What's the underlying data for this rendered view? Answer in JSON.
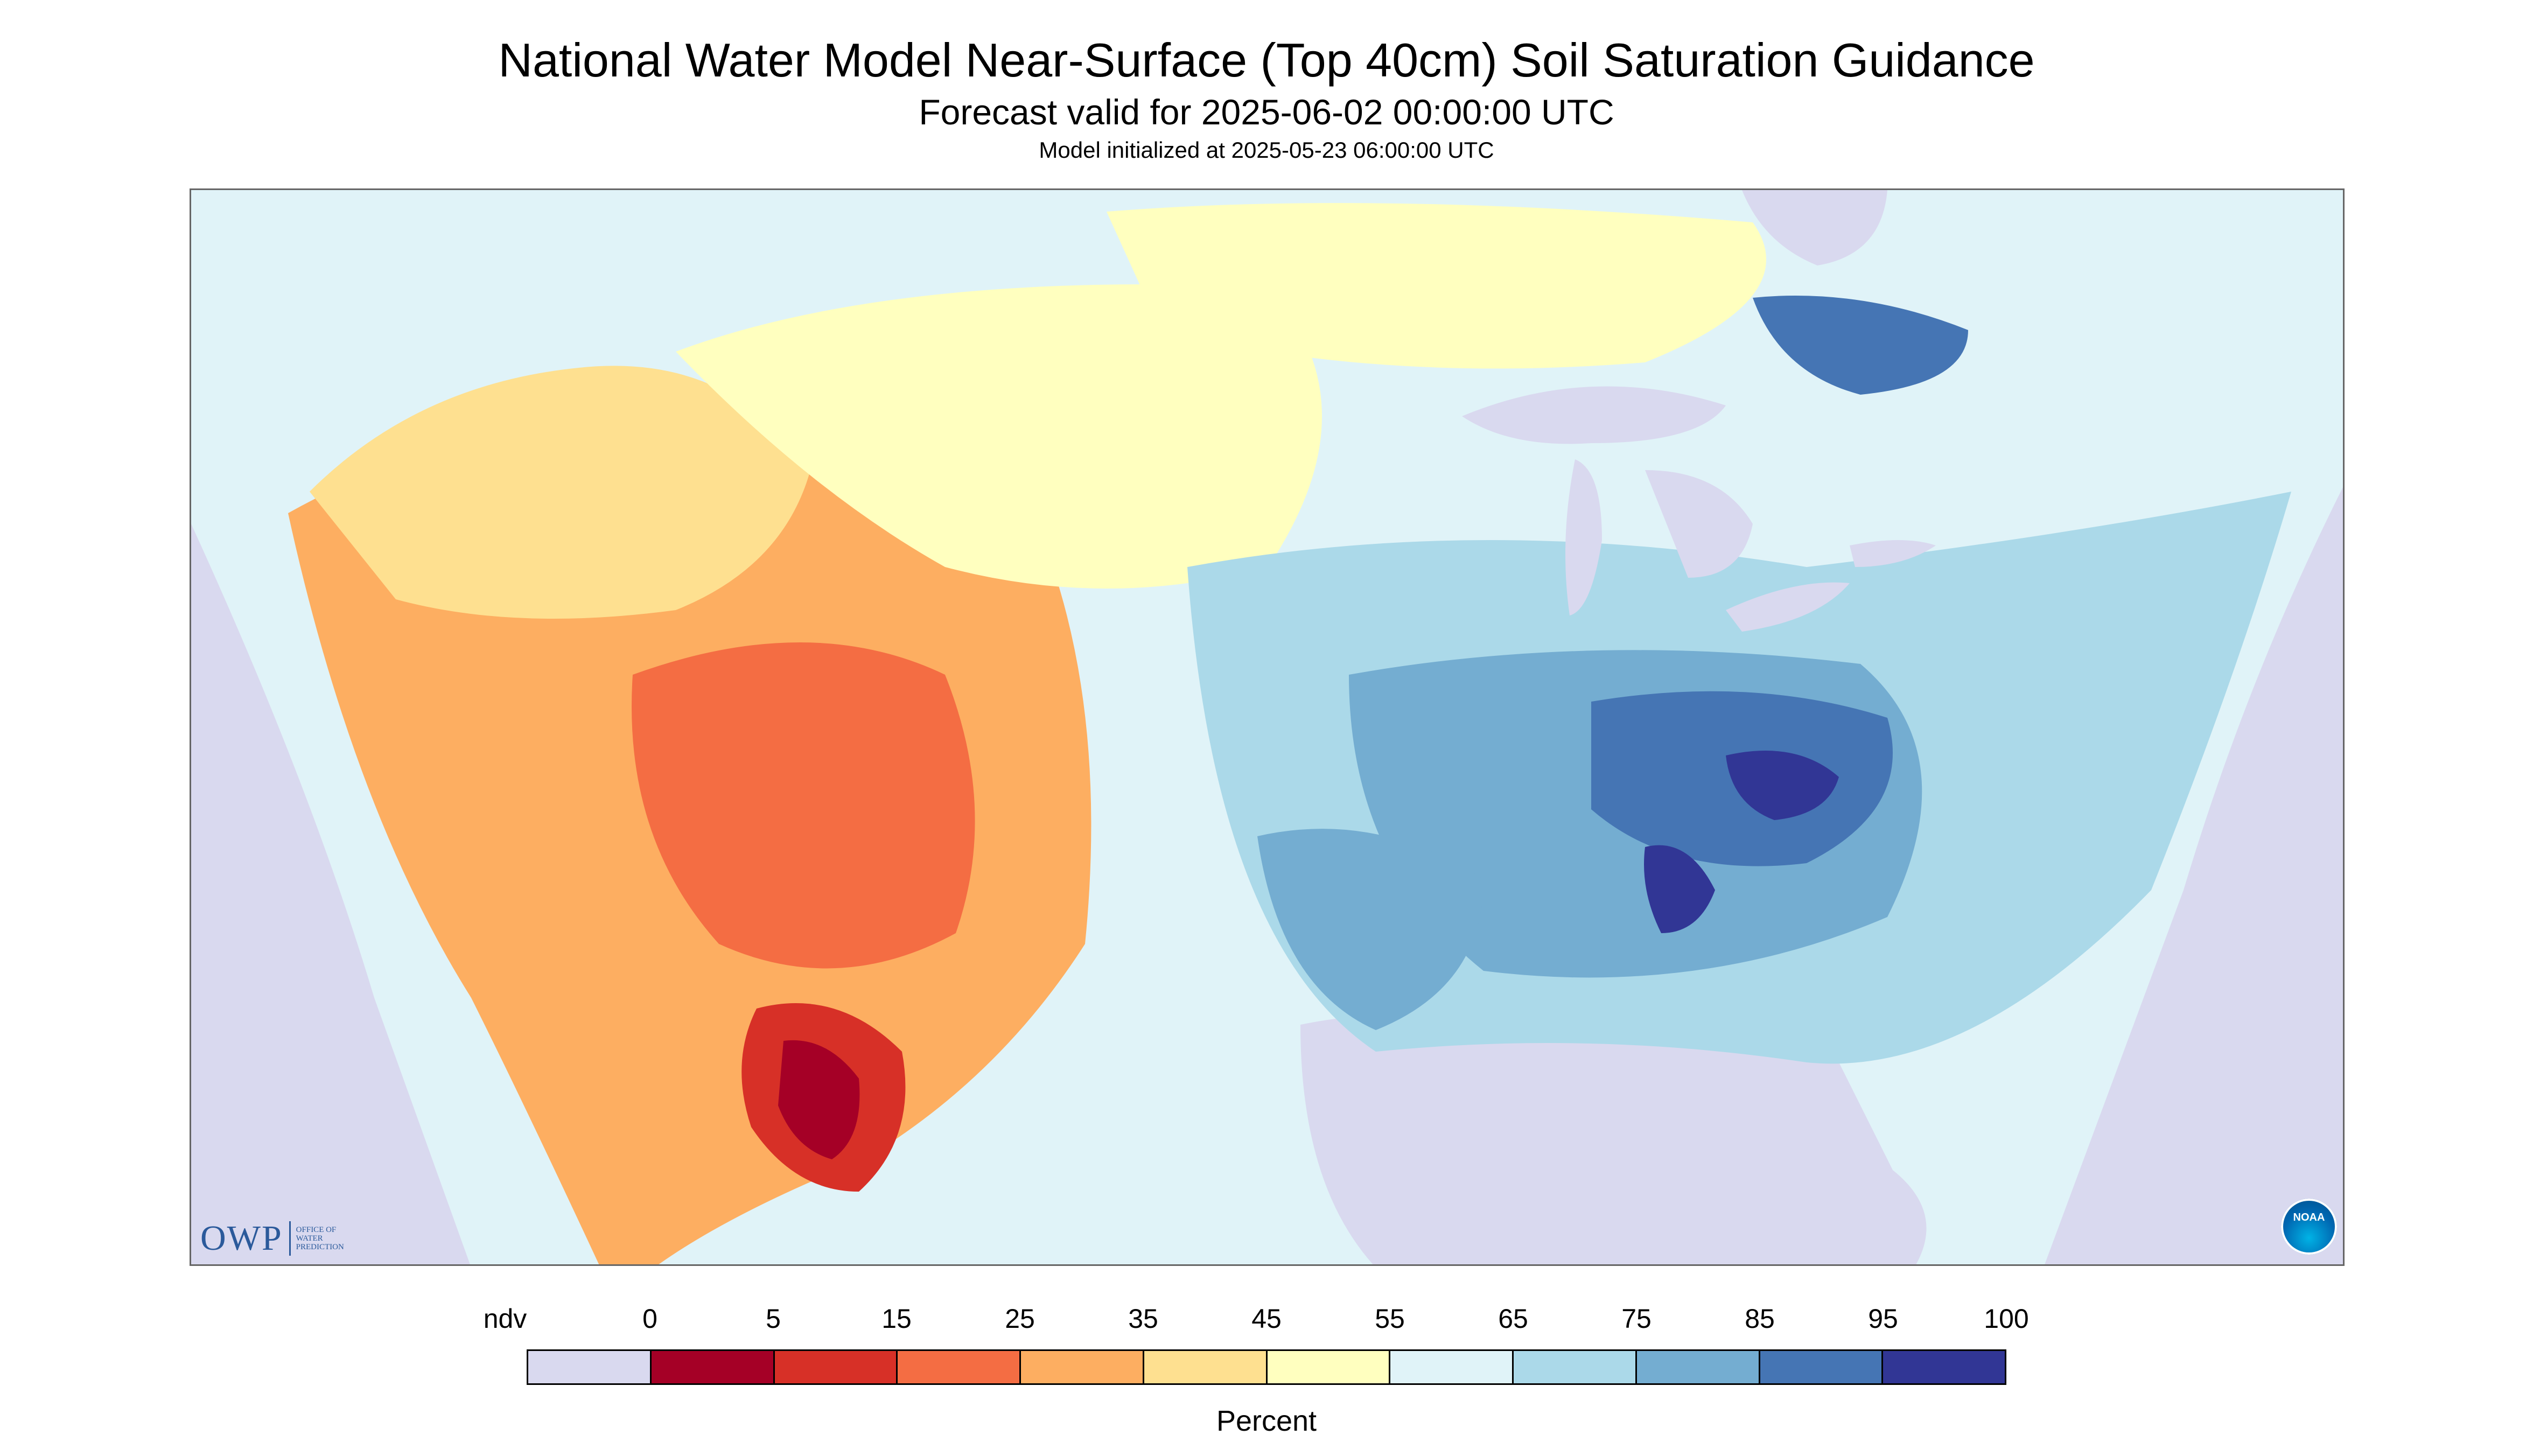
{
  "title": "National Water Model Near-Surface (Top 40cm) Soil Saturation Guidance",
  "subtitle": "Forecast valid for 2025-06-02 00:00:00 UTC",
  "init_line": "Model initialized at 2025-05-23 06:00:00 UTC",
  "logos": {
    "owp_mark": "OWP",
    "owp_text": [
      "OFFICE OF",
      "WATER",
      "PREDICTION"
    ],
    "noaa_text": "NOAA"
  },
  "legend": {
    "units": "Percent",
    "ticks": [
      "ndv",
      "0",
      "5",
      "15",
      "25",
      "35",
      "45",
      "55",
      "65",
      "75",
      "85",
      "95",
      "100"
    ],
    "colors": [
      "#d9d9ef",
      "#a50026",
      "#d73027",
      "#f46d43",
      "#fdae61",
      "#fee090",
      "#ffffbf",
      "#e0f3f8",
      "#abd9e9",
      "#74add1",
      "#4575b4",
      "#313695"
    ]
  },
  "map_colors": {
    "ndv": "#d9d9ef",
    "dry_extreme": "#a50026",
    "dry_strong": "#d73027",
    "dry": "#f46d43",
    "dryish": "#fdae61",
    "tan": "#fee090",
    "neutral": "#ffffbf",
    "moist_light": "#e0f3f8",
    "moist": "#abd9e9",
    "wet": "#74add1",
    "wetter": "#4575b4",
    "saturated": "#313695",
    "lakes": "#d9d9ef"
  }
}
